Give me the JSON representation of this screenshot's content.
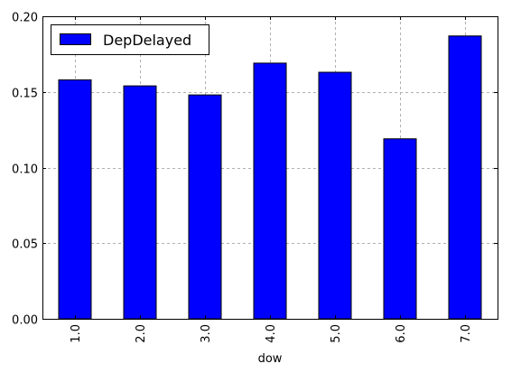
{
  "chart_data": {
    "type": "bar",
    "title": "",
    "xlabel": "dow",
    "ylabel": "",
    "categories": [
      "1.0",
      "2.0",
      "3.0",
      "4.0",
      "5.0",
      "6.0",
      "7.0"
    ],
    "series": [
      {
        "name": "DepDelayed",
        "color": "#0000ff",
        "values": [
          0.158,
          0.154,
          0.148,
          0.169,
          0.163,
          0.119,
          0.187
        ]
      }
    ],
    "ylim": [
      0,
      0.2
    ],
    "yticks": [
      "0.00",
      "0.05",
      "0.10",
      "0.15",
      "0.20"
    ],
    "grid": true,
    "legend_position": "top-left",
    "xtick_rotation": "vertical"
  }
}
